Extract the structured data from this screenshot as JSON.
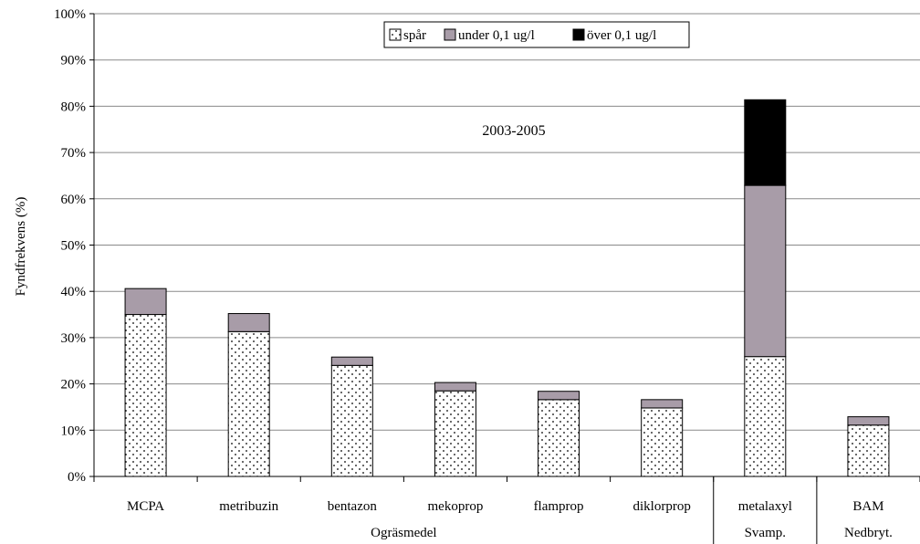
{
  "chart_data": {
    "type": "bar",
    "stacked": true,
    "annotation": "2003-2005",
    "ylabel": "Fyndfrekvens (%)",
    "ylim": [
      0,
      100
    ],
    "yticks": [
      "0%",
      "10%",
      "20%",
      "30%",
      "40%",
      "50%",
      "60%",
      "70%",
      "80%",
      "90%",
      "100%"
    ],
    "grid": true,
    "legend_position": "top-center",
    "categories": [
      "MCPA",
      "metribuzin",
      "bentazon",
      "mekoprop",
      "flamprop",
      "diklorprop",
      "metalaxyl",
      "BAM"
    ],
    "groups": [
      {
        "label": "Ogräsmedel",
        "first": 0,
        "last": 5
      },
      {
        "label": "Svamp.",
        "first": 6,
        "last": 6
      },
      {
        "label": "Nedbryt.",
        "first": 7,
        "last": 7
      }
    ],
    "series": [
      {
        "name": "spår",
        "pattern": "dots",
        "color": "#ffffff",
        "values": [
          35.0,
          31.3,
          24.0,
          18.5,
          16.6,
          14.8,
          25.9,
          11.1
        ]
      },
      {
        "name": "under 0,1 ug/l",
        "color": "#a89ca8",
        "values": [
          5.6,
          3.9,
          1.8,
          1.8,
          1.8,
          1.8,
          37.0,
          1.8
        ]
      },
      {
        "name": "över 0,1 ug/l",
        "color": "#000000",
        "values": [
          0,
          0,
          0,
          0,
          0,
          0,
          18.5,
          0
        ]
      }
    ]
  }
}
